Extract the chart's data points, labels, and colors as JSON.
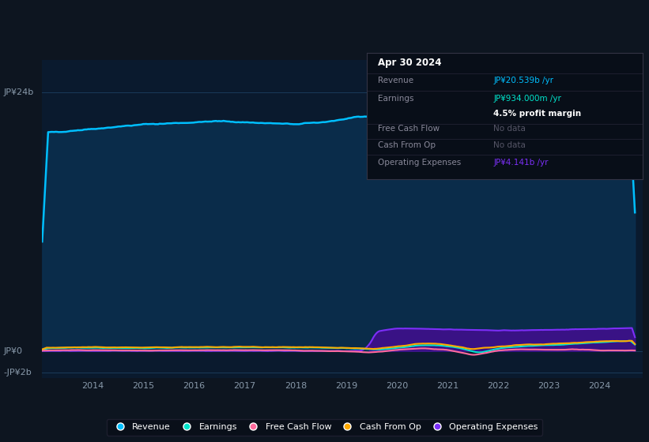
{
  "bg_color": "#0d1520",
  "plot_bg_color": "#0a1a2e",
  "revenue_color": "#00bfff",
  "earnings_color": "#00e5cc",
  "free_cash_flow_color": "#ff6b9d",
  "cash_from_op_color": "#ffaa00",
  "op_expenses_color": "#7b2ff7",
  "legend_labels": [
    "Revenue",
    "Earnings",
    "Free Cash Flow",
    "Cash From Op",
    "Operating Expenses"
  ],
  "info_box": {
    "title": "Apr 30 2024",
    "revenue_label": "Revenue",
    "revenue_value": "JP¥20.539b /yr",
    "earnings_label": "Earnings",
    "earnings_value": "JP¥934.000m /yr",
    "profit_margin": "4.5% profit margin",
    "free_cash_flow_label": "Free Cash Flow",
    "free_cash_flow_value": "No data",
    "cash_from_op_label": "Cash From Op",
    "cash_from_op_value": "No data",
    "op_expenses_label": "Operating Expenses",
    "op_expenses_value": "JP¥4.141b /yr"
  },
  "y_label_24": "JP¥24b",
  "y_label_0": "JP¥0",
  "y_label_neg2": "-JP¥2b",
  "x_tick_labels": [
    "2014",
    "2015",
    "2016",
    "2017",
    "2018",
    "2019",
    "2020",
    "2021",
    "2022",
    "2023",
    "2024"
  ],
  "x_tick_positions": [
    2014,
    2015,
    2016,
    2017,
    2018,
    2019,
    2020,
    2021,
    2022,
    2023,
    2024
  ]
}
